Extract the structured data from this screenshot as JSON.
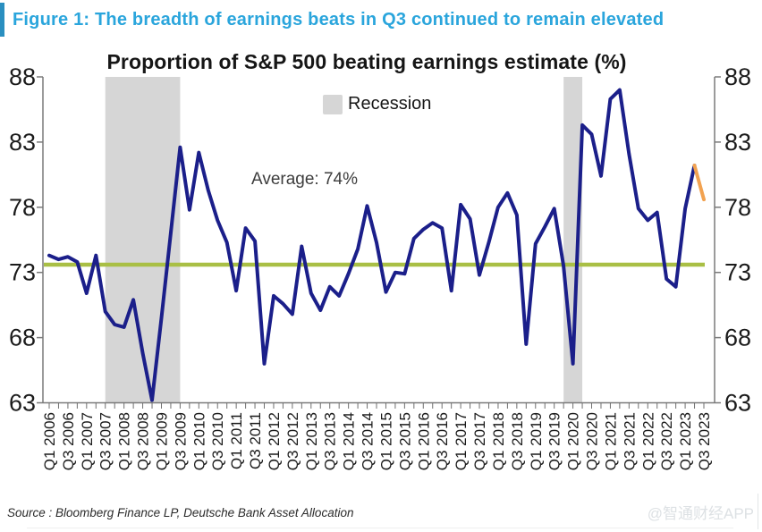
{
  "header": {
    "figure_label": "Figure 1: The breadth of earnings beats in Q3 continued to remain elevated",
    "accent_color": "#2aa5dc"
  },
  "chart_data": {
    "type": "line",
    "title": "Proportion of S&P 500 beating earnings estimate (%)",
    "legend": [
      {
        "label": "Recession",
        "swatch_color": "#d6d6d6"
      }
    ],
    "legend_position": "upper center",
    "grid": false,
    "ylim": [
      63,
      88
    ],
    "y_ticks": [
      88,
      83,
      78,
      73,
      68,
      63
    ],
    "line_color": "#1b1f8a",
    "last_segment_color": "#f2a250",
    "average_line": {
      "label": "Average: 74%",
      "value": 73.6,
      "color": "#a9bf45"
    },
    "recession_band_color": "#d6d6d6",
    "recession_bands": [
      {
        "from": "Q3 2007",
        "to": "Q3 2009"
      },
      {
        "from": "Q4 2019",
        "to": "Q2 2020"
      }
    ],
    "x_start": "Q1 2006",
    "x_frequency": "quarterly",
    "x_tick_labels": [
      "Q1 2006",
      "Q3 2006",
      "Q1 2007",
      "Q3 2007",
      "Q1 2008",
      "Q3 2008",
      "Q1 2009",
      "Q3 2009",
      "Q1 2010",
      "Q3 2010",
      "Q1 2011",
      "Q3 2011",
      "Q1 2012",
      "Q3 2012",
      "Q1 2013",
      "Q3 2013",
      "Q1 2014",
      "Q3 2014",
      "Q1 2015",
      "Q3 2015",
      "Q1 2016",
      "Q3 2016",
      "Q1 2017",
      "Q3 2017",
      "Q1 2018",
      "Q3 2018",
      "Q1 2019",
      "Q3 2019",
      "Q1 2020",
      "Q3 2020",
      "Q1 2021",
      "Q3 2021",
      "Q1 2022",
      "Q3 2022",
      "Q1 2023",
      "Q3 2023"
    ],
    "values": [
      74.3,
      74.0,
      74.2,
      73.8,
      71.4,
      74.3,
      70.0,
      69.0,
      68.8,
      70.9,
      66.8,
      63.2,
      69.5,
      76.0,
      82.6,
      77.8,
      82.2,
      79.3,
      77.0,
      75.3,
      71.6,
      76.4,
      75.4,
      66.0,
      71.2,
      70.6,
      69.8,
      75.0,
      71.4,
      70.1,
      71.9,
      71.2,
      72.9,
      74.8,
      78.1,
      75.3,
      71.5,
      73.0,
      72.9,
      75.6,
      76.3,
      76.8,
      76.4,
      71.6,
      78.2,
      77.1,
      72.8,
      75.3,
      78.0,
      79.1,
      77.4,
      67.5,
      75.2,
      76.5,
      77.9,
      73.5,
      66.0,
      84.3,
      83.6,
      80.4,
      86.3,
      87.0,
      82.1,
      77.9,
      77.0,
      77.6,
      72.5,
      71.9,
      77.9,
      81.2,
      78.6
    ]
  },
  "footer": {
    "source": "Source : Bloomberg Finance LP, Deutsche Bank Asset Allocation",
    "watermark": "@智通财经APP"
  }
}
